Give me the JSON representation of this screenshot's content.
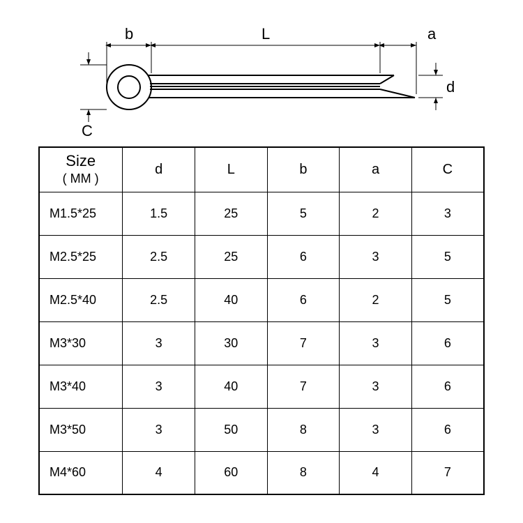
{
  "diagram": {
    "labels": {
      "b": "b",
      "L": "L",
      "a": "a",
      "d": "d",
      "C": "C"
    },
    "stroke_color": "#000000",
    "stroke_width": 2,
    "label_fontsize": 22
  },
  "table": {
    "header": {
      "size_line1": "Size",
      "size_line2": "( MM )",
      "cols": [
        "d",
        "L",
        "b",
        "a",
        "C"
      ]
    },
    "rows": [
      {
        "size": "M1.5*25",
        "d": "1.5",
        "L": "25",
        "b": "5",
        "a": "2",
        "C": "3"
      },
      {
        "size": "M2.5*25",
        "d": "2.5",
        "L": "25",
        "b": "6",
        "a": "3",
        "C": "5"
      },
      {
        "size": "M2.5*40",
        "d": "2.5",
        "L": "40",
        "b": "6",
        "a": "2",
        "C": "5"
      },
      {
        "size": "M3*30",
        "d": "3",
        "L": "30",
        "b": "7",
        "a": "3",
        "C": "6"
      },
      {
        "size": "M3*40",
        "d": "3",
        "L": "40",
        "b": "7",
        "a": "3",
        "C": "6"
      },
      {
        "size": "M3*50",
        "d": "3",
        "L": "50",
        "b": "8",
        "a": "3",
        "C": "6"
      },
      {
        "size": "M4*60",
        "d": "4",
        "L": "60",
        "b": "8",
        "a": "4",
        "C": "7"
      }
    ],
    "border_color": "#000000",
    "cell_fontsize": 18,
    "header_fontsize": 20
  }
}
